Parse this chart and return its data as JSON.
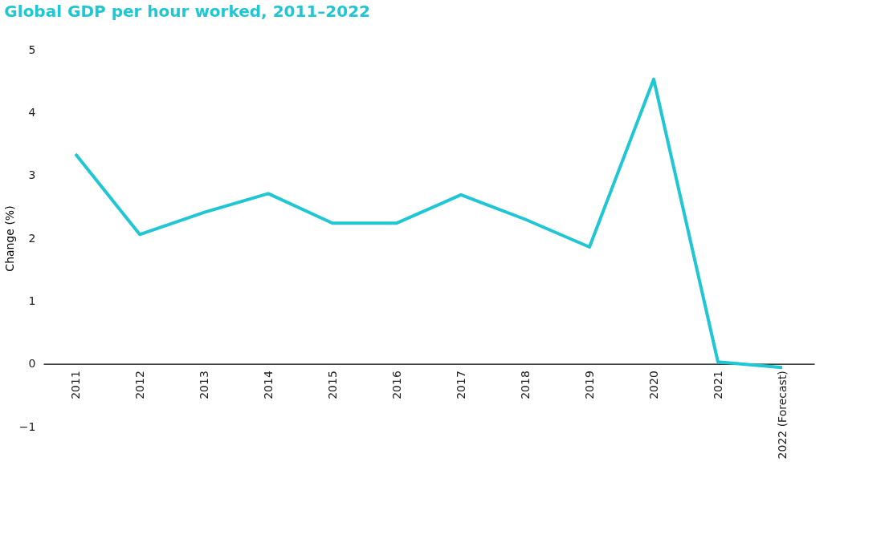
{
  "chart_data": {
    "type": "line",
    "title": "Global GDP per hour worked, 2011–2022",
    "ylabel": "Change (%)",
    "categories": [
      "2011",
      "2012",
      "2013",
      "2014",
      "2015",
      "2016",
      "2017",
      "2018",
      "2019",
      "2020",
      "2021",
      "2022 (Forecast)"
    ],
    "series": [
      {
        "color": "#1fc6d3",
        "values": [
          3.34,
          2.06,
          2.41,
          2.71,
          2.24,
          2.24,
          2.69,
          2.3,
          1.86,
          4.53,
          0.03,
          -0.06
        ]
      }
    ],
    "ylim": [
      -1,
      5
    ],
    "yticks": [
      {
        "value": -1,
        "label": "−1"
      },
      0,
      1,
      2,
      3,
      4,
      5
    ],
    "grid": false,
    "marker": "none",
    "line_style": "solid"
  }
}
